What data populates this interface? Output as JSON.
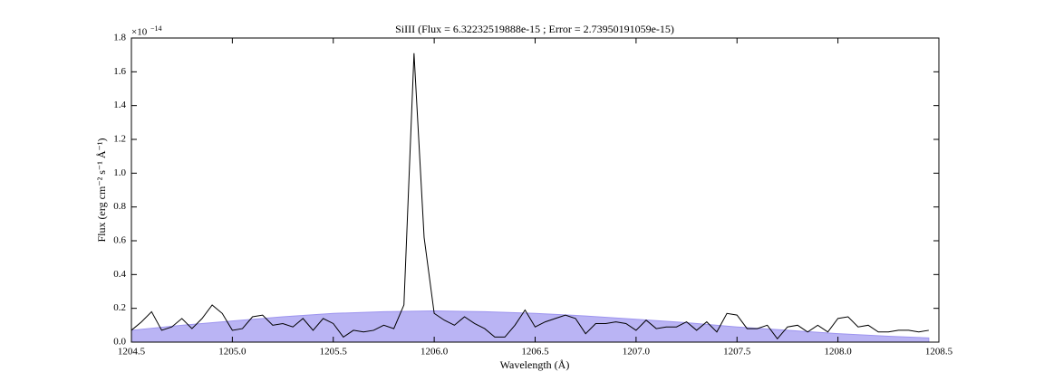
{
  "chart_data": {
    "type": "line",
    "title": "SiIII (Flux = 6.32232519888e-15 ; Error = 2.73950191059e-15)",
    "x_label": "Wavelength (Å)",
    "y_label": "Flux (erg cm⁻² s⁻¹ Å⁻¹)",
    "y_offset": {
      "base": "×10",
      "exponent": "−14"
    },
    "xlim": [
      1204.5,
      1208.5
    ],
    "ylim": [
      0,
      1.8
    ],
    "xticks": [
      1204.5,
      {
        "value": 1205,
        "label": "1205.0"
      },
      1205.5,
      {
        "value": 1206,
        "label": "1206.0"
      },
      1206.5,
      {
        "value": 1207,
        "label": "1207.0"
      },
      1207.5,
      {
        "value": 1208,
        "label": "1208.0"
      },
      1208.5
    ],
    "yticks": [
      {
        "value": 0,
        "label": "0.0"
      },
      0.2,
      0.4,
      0.6,
      0.8,
      {
        "value": 1,
        "label": "1.0"
      },
      1.2,
      1.4,
      1.6,
      1.8
    ],
    "series": [
      {
        "style": "area",
        "color": "#9d94ef",
        "x": [
          1204.5,
          1204.75,
          1205,
          1205.25,
          1205.5,
          1205.75,
          1206,
          1206.25,
          1206.5,
          1206.75,
          1207,
          1207.25,
          1207.5,
          1207.75,
          1208,
          1208.25,
          1208.45
        ],
        "values": [
          0.07,
          0.1,
          0.125,
          0.15,
          0.17,
          0.18,
          0.185,
          0.18,
          0.17,
          0.155,
          0.135,
          0.115,
          0.09,
          0.07,
          0.05,
          0.035,
          0.025
        ]
      },
      {
        "style": "line",
        "color": "#000000",
        "x": [
          1204.5,
          1204.55,
          1204.6,
          1204.65,
          1204.7,
          1204.75,
          1204.8,
          1204.85,
          1204.9,
          1204.95,
          1205,
          1205.05,
          1205.1,
          1205.15,
          1205.2,
          1205.25,
          1205.3,
          1205.35,
          1205.4,
          1205.45,
          1205.5,
          1205.55,
          1205.6,
          1205.65,
          1205.7,
          1205.75,
          1205.8,
          1205.85,
          1205.9,
          1205.95,
          1206,
          1206.05,
          1206.1,
          1206.15,
          1206.2,
          1206.25,
          1206.3,
          1206.35,
          1206.4,
          1206.45,
          1206.5,
          1206.55,
          1206.6,
          1206.65,
          1206.7,
          1206.75,
          1206.8,
          1206.85,
          1206.9,
          1206.95,
          1207,
          1207.05,
          1207.1,
          1207.15,
          1207.2,
          1207.25,
          1207.3,
          1207.35,
          1207.4,
          1207.45,
          1207.5,
          1207.55,
          1207.6,
          1207.65,
          1207.7,
          1207.75,
          1207.8,
          1207.85,
          1207.9,
          1207.95,
          1208,
          1208.05,
          1208.1,
          1208.15,
          1208.2,
          1208.25,
          1208.3,
          1208.35,
          1208.4,
          1208.45
        ],
        "values": [
          0.07,
          0.12,
          0.18,
          0.07,
          0.09,
          0.14,
          0.08,
          0.14,
          0.22,
          0.17,
          0.07,
          0.08,
          0.15,
          0.16,
          0.1,
          0.11,
          0.09,
          0.14,
          0.07,
          0.14,
          0.11,
          0.03,
          0.07,
          0.06,
          0.07,
          0.1,
          0.08,
          0.22,
          1.71,
          0.62,
          0.17,
          0.13,
          0.1,
          0.15,
          0.11,
          0.08,
          0.03,
          0.03,
          0.1,
          0.19,
          0.09,
          0.12,
          0.14,
          0.16,
          0.14,
          0.05,
          0.11,
          0.11,
          0.12,
          0.11,
          0.07,
          0.13,
          0.08,
          0.09,
          0.09,
          0.12,
          0.07,
          0.12,
          0.06,
          0.17,
          0.16,
          0.08,
          0.08,
          0.1,
          0.02,
          0.09,
          0.1,
          0.06,
          0.1,
          0.06,
          0.14,
          0.15,
          0.09,
          0.1,
          0.06,
          0.06,
          0.07,
          0.07,
          0.06,
          0.07
        ]
      }
    ]
  }
}
